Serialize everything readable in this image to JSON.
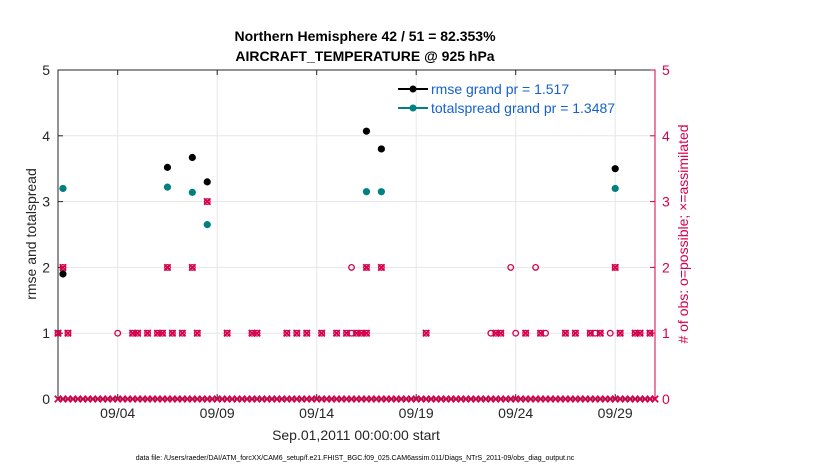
{
  "chart_data": {
    "type": "scatter",
    "title": "Northern Hemisphere 42 / 51 = 82.353%",
    "subtitle": "AIRCRAFT_TEMPERATURE @ 925 hPa",
    "xlabel": "Sep.01,2011 00:00:00 start",
    "ylabel_left": "rmse and totalspread",
    "ylabel_right": "# of obs: o=possible; ×=assimilated",
    "xlim": [
      1,
      31
    ],
    "ylim": [
      0,
      5
    ],
    "x_ticks": [
      {
        "x": 4,
        "label": "09/04"
      },
      {
        "x": 9,
        "label": "09/09"
      },
      {
        "x": 14,
        "label": "09/14"
      },
      {
        "x": 19,
        "label": "09/19"
      },
      {
        "x": 24,
        "label": "09/24"
      },
      {
        "x": 29,
        "label": "09/29"
      }
    ],
    "y_ticks_left": [
      "0",
      "1",
      "2",
      "3",
      "4",
      "5"
    ],
    "y_ticks_right": [
      "0",
      "1",
      "2",
      "3",
      "4",
      "5"
    ],
    "grid": true,
    "legend_position": "top-right",
    "colors": {
      "rmse": "#000000",
      "spread": "#008080",
      "obs": "#d6004c",
      "axis": "#262626",
      "grid": "#e6e6e6"
    },
    "series": [
      {
        "name": "rmse grand pr = 1.517",
        "key": "rmse",
        "points": [
          [
            1.25,
            1.9
          ],
          [
            6.5,
            3.52
          ],
          [
            7.75,
            3.67
          ],
          [
            8.5,
            3.3
          ],
          [
            16.5,
            4.07
          ],
          [
            17.25,
            3.8
          ],
          [
            29,
            3.5
          ]
        ]
      },
      {
        "name": "totalspread grand pr = 1.3487",
        "key": "spread",
        "points": [
          [
            1.25,
            3.2
          ],
          [
            6.5,
            3.22
          ],
          [
            7.75,
            3.14
          ],
          [
            8.5,
            2.65
          ],
          [
            16.5,
            3.15
          ],
          [
            17.25,
            3.15
          ],
          [
            29,
            3.2
          ]
        ]
      }
    ],
    "obs_possible": {
      "name": "possible",
      "x_ones": [
        1,
        1.5,
        4,
        4.75,
        5,
        5.5,
        6,
        6.25,
        6.75,
        7.25,
        8,
        9.5,
        10.75,
        11,
        12.5,
        13,
        13.5,
        14.25,
        15,
        15.5,
        15.75,
        16,
        16.25,
        16.5,
        19.5,
        22.75,
        23,
        23.25,
        24,
        24.5,
        25.25,
        25.5,
        26.5,
        27,
        27.75,
        28,
        28.25,
        28.75,
        29.25,
        30,
        30.25,
        30.75
      ],
      "x_twos": [
        1.25,
        6.5,
        7.75,
        15.75,
        16.5,
        17.25,
        23.75,
        25,
        29
      ],
      "x_threes": [
        8.5
      ]
    },
    "obs_assimilated": {
      "name": "assimilated",
      "x_zeros_range": [
        1,
        31
      ],
      "x_ones": [
        1,
        1.5,
        4.75,
        5,
        5.5,
        6,
        6.25,
        6.75,
        7.25,
        8,
        9.5,
        10.75,
        11,
        12.5,
        13,
        13.5,
        14.25,
        15,
        15.5,
        16,
        16.25,
        16.5,
        19.5,
        23,
        23.25,
        24.5,
        25.25,
        26.5,
        27,
        27.75,
        28.25,
        29.25,
        30,
        30.25,
        30.75
      ],
      "x_twos": [
        1.25,
        6.5,
        7.75,
        16.5,
        17.25,
        29
      ],
      "x_threes": [
        8.5
      ]
    }
  },
  "footnote": "data file: /Users/raeder/DAI/ATM_forcXX/CAM6_setup/f.e21.FHIST_BGC.f09_025.CAM6assim.011/Diags_NTrS_2011-09/obs_diag_output.nc"
}
